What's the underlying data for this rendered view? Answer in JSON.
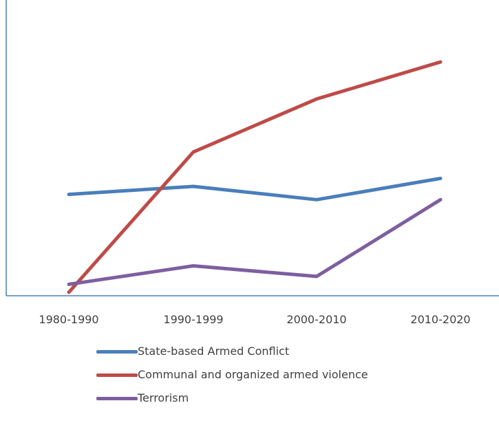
{
  "chart_data": {
    "type": "line",
    "title": "",
    "xlabel": "",
    "ylabel": "",
    "categories": [
      "1980-1990",
      "1990-1999",
      "2000-2010",
      "2010-2020"
    ],
    "ylim": [
      0,
      100
    ],
    "grid": false,
    "legend_position": "bottom",
    "series": [
      {
        "name": "State-based Armed Conflict",
        "color": "#4a7ebb",
        "values": [
          37,
          40,
          35,
          43
        ]
      },
      {
        "name": "Communal and organized armed violence",
        "color": "#be4b48",
        "values": [
          0,
          53,
          73,
          87
        ]
      },
      {
        "name": "Terrorism",
        "color": "#7d5fa0",
        "values": [
          3,
          10,
          6,
          35
        ]
      }
    ]
  }
}
